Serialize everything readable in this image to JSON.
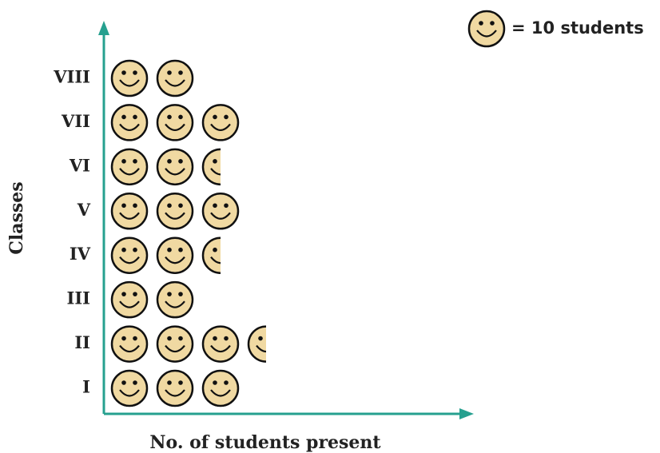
{
  "chart_data": {
    "type": "pictograph",
    "legend_label": "= 10 students",
    "unit": 10,
    "xlabel": "No. of students present",
    "ylabel": "Classes",
    "categories": [
      "I",
      "II",
      "III",
      "IV",
      "V",
      "VI",
      "VII",
      "VIII"
    ],
    "values": [
      30,
      35,
      20,
      25,
      30,
      25,
      30,
      20
    ],
    "color": "#f0d9a2",
    "axis_color": "#26a08f"
  }
}
